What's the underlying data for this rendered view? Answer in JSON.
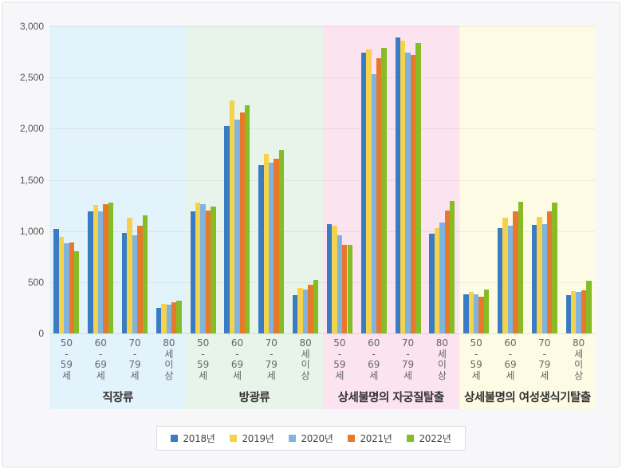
{
  "chart_data": {
    "type": "bar",
    "title": "",
    "xlabel": "",
    "ylabel": "",
    "ylim": [
      0,
      3000
    ],
    "yticks": [
      0,
      500,
      1000,
      1500,
      2000,
      2500,
      3000
    ],
    "ytick_labels": [
      "0",
      "500",
      "1,000",
      "1,500",
      "2,000",
      "2,500",
      "3,000"
    ],
    "grid": true,
    "legend_position": "bottom",
    "age_categories": [
      "50\n-\n59\n세",
      "60\n-\n69\n세",
      "70\n-\n79\n세",
      "80\n세\n이\n상"
    ],
    "age_categories_plain": [
      "50-59세",
      "60-69세",
      "70-79세",
      "80세이상"
    ],
    "series_names": [
      "2018년",
      "2019년",
      "2020년",
      "2021년",
      "2022년"
    ],
    "series_colors": [
      "#3a7cc3",
      "#f5d24c",
      "#7fb3e0",
      "#e9792a",
      "#86bc25"
    ],
    "groups": [
      {
        "name": "직장류",
        "background": "#e3f3fb",
        "values": {
          "2018년": [
            1020,
            1191,
            979,
            251
          ],
          "2019년": [
            945,
            1256,
            1127,
            290
          ],
          "2020년": [
            880,
            1191,
            958,
            277
          ],
          "2021년": [
            890,
            1263,
            1054,
            303
          ],
          "2022년": [
            803,
            1277,
            1155,
            323
          ]
        }
      },
      {
        "name": "방광류",
        "background": "#e8f4ea",
        "values": {
          "2018년": [
            1193,
            2028,
            1647,
            375
          ],
          "2019년": [
            1279,
            2274,
            1756,
            443
          ],
          "2020년": [
            1263,
            2090,
            1665,
            427
          ],
          "2021년": [
            1197,
            2156,
            1709,
            476
          ],
          "2022년": [
            1240,
            2229,
            1795,
            523
          ]
        }
      },
      {
        "name": "상세불명의 자궁질탈출",
        "background": "#fbe3f0",
        "values": {
          "2018년": [
            1064,
            2745,
            2893,
            973
          ],
          "2019년": [
            1051,
            2776,
            2857,
            1030
          ],
          "2020년": [
            960,
            2531,
            2743,
            1080
          ],
          "2021년": [
            862,
            2691,
            2720,
            1199
          ],
          "2022년": [
            862,
            2789,
            2838,
            1292
          ]
        }
      },
      {
        "name": "상세불명의 여성생식기탈출",
        "background": "#fdfbe3",
        "values": {
          "2018년": [
            383,
            1028,
            1057,
            375
          ],
          "2019년": [
            404,
            1129,
            1137,
            412
          ],
          "2020년": [
            378,
            1051,
            1064,
            409
          ],
          "2021년": [
            357,
            1191,
            1191,
            419
          ],
          "2022년": [
            427,
            1284,
            1277,
            518
          ]
        }
      }
    ]
  },
  "legend": {
    "items": [
      {
        "label": "2018년",
        "color": "#3a7cc3"
      },
      {
        "label": "2019년",
        "color": "#f5d24c"
      },
      {
        "label": "2020년",
        "color": "#7fb3e0"
      },
      {
        "label": "2021년",
        "color": "#e9792a"
      },
      {
        "label": "2022년",
        "color": "#86bc25"
      }
    ]
  }
}
